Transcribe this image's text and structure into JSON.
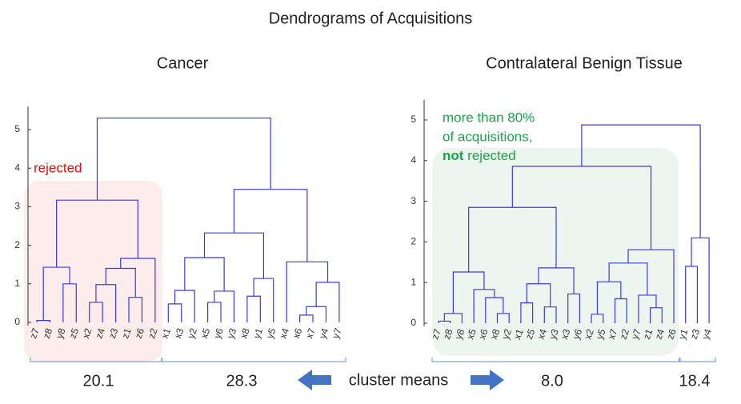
{
  "title": "Dendrograms of Acquisitions",
  "means_label": "cluster means",
  "chart_data": [
    {
      "type": "dendrogram",
      "title": "Cancer",
      "color": "#3b3bdb",
      "ylim": [
        0,
        5.6
      ],
      "yticks": [
        0,
        1,
        2,
        3,
        4,
        5
      ],
      "annotation": "rejected",
      "categories": [
        "z7",
        "z8",
        "y8",
        "z5",
        "x2",
        "z4",
        "z3",
        "z1",
        "z6",
        "z2",
        "x1",
        "x3",
        "y2",
        "x5",
        "y6",
        "y3",
        "x8",
        "y1",
        "y5",
        "x4",
        "x6",
        "x7",
        "y4",
        "y7"
      ],
      "links": [
        {
          "children": [
            0,
            1
          ],
          "height": 0.05
        },
        {
          "children": [
            2,
            3
          ],
          "height": 1.0
        },
        {
          "children": [
            24,
            25
          ],
          "height": 1.43
        },
        {
          "children": [
            4,
            5
          ],
          "height": 0.52
        },
        {
          "children": [
            27,
            6
          ],
          "height": 0.98
        },
        {
          "children": [
            7,
            8
          ],
          "height": 0.65
        },
        {
          "children": [
            28,
            29
          ],
          "height": 1.4
        },
        {
          "children": [
            30,
            9
          ],
          "height": 1.66
        },
        {
          "children": [
            26,
            31
          ],
          "height": 3.17
        },
        {
          "children": [
            10,
            11
          ],
          "height": 0.48
        },
        {
          "children": [
            33,
            12
          ],
          "height": 0.83
        },
        {
          "children": [
            13,
            14
          ],
          "height": 0.52
        },
        {
          "children": [
            35,
            15
          ],
          "height": 0.81
        },
        {
          "children": [
            34,
            36
          ],
          "height": 1.68
        },
        {
          "children": [
            16,
            17
          ],
          "height": 0.68
        },
        {
          "children": [
            38,
            18
          ],
          "height": 1.14
        },
        {
          "children": [
            37,
            39
          ],
          "height": 2.32
        },
        {
          "children": [
            20,
            21
          ],
          "height": 0.19
        },
        {
          "children": [
            41,
            22
          ],
          "height": 0.41
        },
        {
          "children": [
            42,
            23
          ],
          "height": 1.04
        },
        {
          "children": [
            19,
            43
          ],
          "height": 1.57
        },
        {
          "children": [
            40,
            44
          ],
          "height": 3.45
        },
        {
          "children": [
            32,
            45
          ],
          "height": 5.3
        }
      ],
      "cluster_means": {
        "values": [
          20.1,
          28.3
        ],
        "value_labels": [
          "20.1",
          "28.3"
        ]
      }
    },
    {
      "type": "dendrogram",
      "title": "Contralateral Benign Tissue",
      "color": "#3b3bdb",
      "ylim": [
        0,
        5.5
      ],
      "yticks": [
        0,
        1,
        2,
        3,
        4,
        5
      ],
      "annotation": [
        "more than 80%",
        "of acquisitions,"
      ],
      "annotation_bold": "not",
      "annotation_end": "rejected",
      "categories": [
        "z7",
        "z8",
        "y8",
        "x5",
        "x6",
        "x8",
        "y2",
        "x1",
        "z5",
        "x4",
        "y3",
        "x3",
        "y6",
        "x2",
        "y5",
        "x7",
        "z2",
        "y7",
        "z1",
        "z4",
        "z6",
        "y1",
        "z3",
        "y4"
      ],
      "links": [
        {
          "children": [
            0,
            1
          ],
          "height": 0.05
        },
        {
          "children": [
            24,
            2
          ],
          "height": 0.24
        },
        {
          "children": [
            5,
            6
          ],
          "height": 0.24
        },
        {
          "children": [
            4,
            26
          ],
          "height": 0.63
        },
        {
          "children": [
            3,
            27
          ],
          "height": 0.83
        },
        {
          "children": [
            25,
            28
          ],
          "height": 1.26
        },
        {
          "children": [
            7,
            8
          ],
          "height": 0.5
        },
        {
          "children": [
            9,
            10
          ],
          "height": 0.4
        },
        {
          "children": [
            30,
            31
          ],
          "height": 0.97
        },
        {
          "children": [
            11,
            12
          ],
          "height": 0.72
        },
        {
          "children": [
            32,
            33
          ],
          "height": 1.36
        },
        {
          "children": [
            29,
            34
          ],
          "height": 2.85
        },
        {
          "children": [
            13,
            14
          ],
          "height": 0.22
        },
        {
          "children": [
            15,
            16
          ],
          "height": 0.6
        },
        {
          "children": [
            36,
            37
          ],
          "height": 1.02
        },
        {
          "children": [
            18,
            19
          ],
          "height": 0.38
        },
        {
          "children": [
            17,
            39
          ],
          "height": 0.69
        },
        {
          "children": [
            38,
            40
          ],
          "height": 1.48
        },
        {
          "children": [
            41,
            20
          ],
          "height": 1.81
        },
        {
          "children": [
            35,
            42
          ],
          "height": 3.86
        },
        {
          "children": [
            21,
            22
          ],
          "height": 1.4
        },
        {
          "children": [
            44,
            23
          ],
          "height": 2.1
        },
        {
          "children": [
            43,
            45
          ],
          "height": 4.88
        }
      ],
      "cluster_means": {
        "values": [
          8.0,
          18.4
        ],
        "value_labels": [
          "8.0",
          "18.4"
        ]
      }
    }
  ]
}
